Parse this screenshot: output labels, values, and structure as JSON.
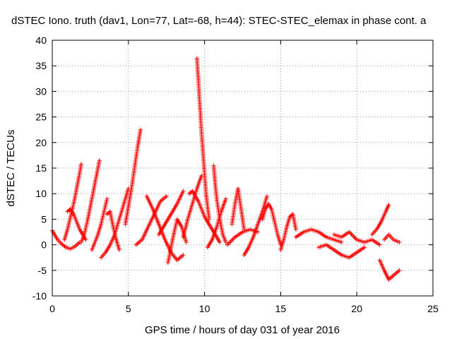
{
  "chart_data": {
    "type": "scatter",
    "title": "dSTEC Iono. truth (dav1, Lon=77, Lat=-68, h=44): STEC-STEC_elemax in phase cont. a",
    "xlabel": "GPS time / hours of day 031 of year 2016",
    "ylabel": "dSTEC  / TECUs",
    "xlim": [
      0,
      25
    ],
    "ylim": [
      -10,
      40
    ],
    "xticks": [
      0,
      5,
      10,
      15,
      20,
      25
    ],
    "yticks": [
      -10,
      -5,
      0,
      5,
      10,
      15,
      20,
      25,
      30,
      35,
      40
    ],
    "grid": true,
    "marker": "+",
    "color": "#ff0000",
    "arcs": [
      {
        "x": [
          0.0,
          0.3,
          0.6,
          0.9,
          1.2,
          1.5,
          1.8
        ],
        "y": [
          2.8,
          1.2,
          0.2,
          -0.5,
          -0.8,
          -0.3,
          0.5
        ]
      },
      {
        "x": [
          0.8,
          1.0,
          1.2,
          1.4,
          1.6,
          1.8,
          1.9
        ],
        "y": [
          1.0,
          3.0,
          5.5,
          8.0,
          11.0,
          14.0,
          15.8
        ]
      },
      {
        "x": [
          1.0,
          1.2,
          1.4,
          1.6,
          1.8,
          2.0,
          2.2
        ],
        "y": [
          6.5,
          7.0,
          6.0,
          4.5,
          3.0,
          2.0,
          1.0
        ]
      },
      {
        "x": [
          1.9,
          2.1,
          2.3,
          2.5,
          2.7,
          2.9,
          3.1
        ],
        "y": [
          0.5,
          2.0,
          4.5,
          7.5,
          10.5,
          13.5,
          16.5
        ]
      },
      {
        "x": [
          2.6,
          2.8,
          3.0,
          3.2,
          3.4,
          3.6
        ],
        "y": [
          -1.0,
          0.5,
          2.0,
          4.0,
          6.5,
          9.0
        ]
      },
      {
        "x": [
          3.2,
          3.5,
          3.8,
          4.1,
          4.4,
          4.7,
          5.0
        ],
        "y": [
          -2.5,
          -1.5,
          0.0,
          2.0,
          5.0,
          8.0,
          11.0
        ]
      },
      {
        "x": [
          3.6,
          3.8,
          4.0,
          4.2,
          4.4
        ],
        "y": [
          6.0,
          6.5,
          3.5,
          1.0,
          -1.0
        ]
      },
      {
        "x": [
          4.8,
          5.0,
          5.2,
          5.4,
          5.6,
          5.8
        ],
        "y": [
          4.0,
          7.5,
          11.0,
          15.0,
          19.0,
          22.5
        ]
      },
      {
        "x": [
          5.5,
          5.9,
          6.3,
          6.7,
          7.1,
          7.5
        ],
        "y": [
          0.0,
          1.0,
          3.5,
          6.0,
          8.5,
          9.5
        ]
      },
      {
        "x": [
          6.2,
          6.6,
          7.0,
          7.4,
          7.8,
          8.2,
          8.6
        ],
        "y": [
          9.5,
          7.0,
          4.0,
          1.0,
          -1.5,
          -3.0,
          -2.0
        ]
      },
      {
        "x": [
          7.0,
          7.4,
          7.8,
          8.2,
          8.6
        ],
        "y": [
          2.0,
          4.0,
          6.0,
          8.0,
          10.5
        ]
      },
      {
        "x": [
          7.6,
          7.9,
          8.2,
          8.5,
          8.8
        ],
        "y": [
          -3.5,
          1.0,
          5.0,
          3.5,
          0.5
        ]
      },
      {
        "x": [
          8.6,
          8.9,
          9.2,
          9.5,
          9.8
        ],
        "y": [
          1.5,
          5.0,
          8.0,
          11.0,
          13.5
        ]
      },
      {
        "x": [
          9.5,
          9.6,
          9.7,
          9.8,
          9.9,
          10.0,
          10.1,
          10.3
        ],
        "y": [
          36.5,
          32.0,
          27.0,
          22.0,
          18.0,
          14.0,
          10.0,
          5.0
        ]
      },
      {
        "x": [
          9.0,
          9.2,
          9.4,
          9.6,
          9.8,
          10.0,
          10.2,
          10.4,
          10.6,
          10.8,
          11.0
        ],
        "y": [
          10.0,
          10.5,
          9.5,
          8.5,
          7.0,
          5.5,
          4.5,
          3.5,
          2.5,
          1.5,
          0.5
        ]
      },
      {
        "x": [
          10.2,
          10.5,
          10.8,
          11.1,
          11.4
        ],
        "y": [
          -0.5,
          1.0,
          3.5,
          6.5,
          9.0
        ]
      },
      {
        "x": [
          10.6,
          10.7,
          10.8,
          11.0,
          11.2,
          11.4
        ],
        "y": [
          15.5,
          12.0,
          9.0,
          5.0,
          2.0,
          0.5
        ]
      },
      {
        "x": [
          11.5,
          12.0,
          12.5,
          13.0,
          13.5
        ],
        "y": [
          0.0,
          1.5,
          2.5,
          3.0,
          2.5
        ]
      },
      {
        "x": [
          11.8,
          12.0,
          12.2,
          12.4,
          12.6
        ],
        "y": [
          4.0,
          8.0,
          11.0,
          7.0,
          3.0
        ]
      },
      {
        "x": [
          12.6,
          12.9,
          13.2,
          13.5,
          13.8,
          14.1
        ],
        "y": [
          -2.0,
          -0.5,
          1.5,
          4.0,
          6.5,
          9.5
        ]
      },
      {
        "x": [
          13.8,
          14.0,
          14.2,
          14.4,
          14.6,
          14.8,
          15.0
        ],
        "y": [
          5.0,
          7.0,
          8.0,
          7.0,
          4.5,
          2.0,
          0.0
        ]
      },
      {
        "x": [
          15.0,
          15.2,
          15.4,
          15.6,
          15.8,
          16.0
        ],
        "y": [
          -1.0,
          1.0,
          3.5,
          5.5,
          6.0,
          3.0
        ]
      },
      {
        "x": [
          16.0,
          16.5,
          17.0,
          17.5,
          18.0,
          18.5,
          19.0
        ],
        "y": [
          1.5,
          2.5,
          3.0,
          2.5,
          1.5,
          1.0,
          0.5
        ]
      },
      {
        "x": [
          17.5,
          18.0,
          18.5,
          19.0,
          19.5,
          20.0,
          20.5
        ],
        "y": [
          -0.5,
          0.0,
          -1.0,
          -2.0,
          -2.5,
          -1.5,
          -0.5
        ]
      },
      {
        "x": [
          18.5,
          19.0,
          19.5,
          20.0,
          20.5,
          21.0,
          21.5
        ],
        "y": [
          2.0,
          1.5,
          2.5,
          1.0,
          0.5,
          1.0,
          0.0
        ]
      },
      {
        "x": [
          21.0,
          21.3,
          21.6,
          21.9,
          22.1
        ],
        "y": [
          2.0,
          3.0,
          4.5,
          6.5,
          7.8
        ]
      },
      {
        "x": [
          21.5,
          21.8,
          22.1,
          22.4,
          22.8
        ],
        "y": [
          -3.0,
          -5.0,
          -6.8,
          -6.0,
          -5.0
        ]
      },
      {
        "x": [
          21.8,
          22.1,
          22.4,
          22.8
        ],
        "y": [
          1.0,
          2.0,
          1.0,
          0.5
        ]
      }
    ]
  }
}
